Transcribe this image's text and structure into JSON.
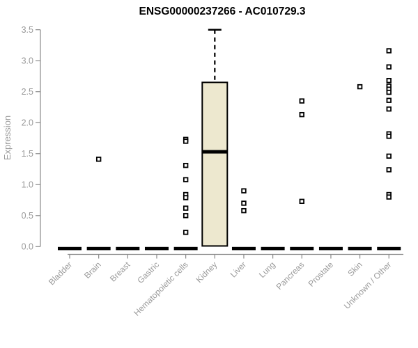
{
  "title": "ENSG00000237266 - AC010729.3",
  "y_axis": {
    "label": "Expression",
    "tick_labels": [
      "0.0",
      "0.5",
      "1.0",
      "1.5",
      "2.0",
      "2.5",
      "3.0",
      "3.5"
    ],
    "min": 0,
    "max": 3.5
  },
  "colors": {
    "box_fill": "#ede8cf",
    "box_stroke": "#000000",
    "axis_line": "#8a8a8a",
    "tick_text": "#9a9a9a",
    "title_text": "#000000"
  },
  "chart_data": {
    "type": "boxplot",
    "title": "ENSG00000237266 - AC010729.3",
    "ylabel": "Expression",
    "ylim": [
      0,
      3.5
    ],
    "grid": false,
    "legend": null,
    "categories": [
      "Bladder",
      "Brain",
      "Breast",
      "Gastric",
      "Hematopoietic cells",
      "Kidney",
      "Liver",
      "Lung",
      "Pancreas",
      "Prostate",
      "Skin",
      "Unknown / Other"
    ],
    "boxes": [
      {
        "category": "Bladder",
        "q1": 0,
        "median": 0,
        "q3": 0,
        "whisker_low": 0,
        "whisker_high": 0,
        "outliers": []
      },
      {
        "category": "Brain",
        "q1": 0,
        "median": 0,
        "q3": 0,
        "whisker_low": 0,
        "whisker_high": 0,
        "outliers": [
          1.41
        ]
      },
      {
        "category": "Breast",
        "q1": 0,
        "median": 0,
        "q3": 0,
        "whisker_low": 0,
        "whisker_high": 0,
        "outliers": []
      },
      {
        "category": "Gastric",
        "q1": 0,
        "median": 0,
        "q3": 0,
        "whisker_low": 0,
        "whisker_high": 0,
        "outliers": []
      },
      {
        "category": "Hematopoietic cells",
        "q1": 0,
        "median": 0,
        "q3": 0,
        "whisker_low": 0,
        "whisker_high": 0,
        "outliers": [
          1.73,
          1.7,
          1.31,
          1.08,
          0.84,
          0.79,
          0.62,
          0.5,
          0.23
        ]
      },
      {
        "category": "Kidney",
        "q1": 0.01,
        "median": 1.53,
        "q3": 2.65,
        "whisker_low": 0.01,
        "whisker_high": 3.5,
        "outliers": []
      },
      {
        "category": "Liver",
        "q1": 0,
        "median": 0,
        "q3": 0,
        "whisker_low": 0,
        "whisker_high": 0,
        "outliers": [
          0.9,
          0.7,
          0.58
        ]
      },
      {
        "category": "Lung",
        "q1": 0,
        "median": 0,
        "q3": 0,
        "whisker_low": 0,
        "whisker_high": 0,
        "outliers": []
      },
      {
        "category": "Pancreas",
        "q1": 0,
        "median": 0,
        "q3": 0,
        "whisker_low": 0,
        "whisker_high": 0,
        "outliers": [
          2.35,
          2.13,
          0.73
        ]
      },
      {
        "category": "Prostate",
        "q1": 0,
        "median": 0,
        "q3": 0,
        "whisker_low": 0,
        "whisker_high": 0,
        "outliers": []
      },
      {
        "category": "Skin",
        "q1": 0,
        "median": 0,
        "q3": 0,
        "whisker_low": 0,
        "whisker_high": 0,
        "outliers": [
          2.58
        ]
      },
      {
        "category": "Unknown / Other",
        "q1": 0,
        "median": 0,
        "q3": 0,
        "whisker_low": 0,
        "whisker_high": 0,
        "outliers": [
          3.16,
          2.9,
          2.68,
          2.59,
          2.54,
          2.49,
          2.36,
          2.22,
          1.82,
          1.78,
          1.46,
          1.24,
          0.84,
          0.8
        ]
      }
    ]
  }
}
